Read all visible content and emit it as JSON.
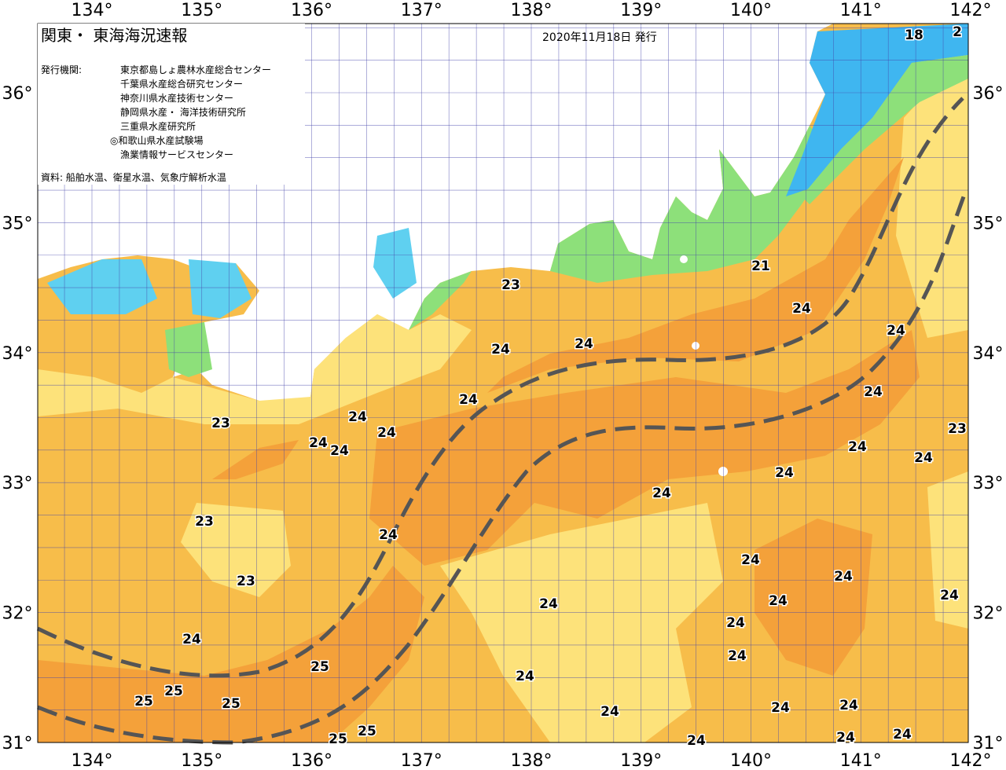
{
  "header": {
    "title": "関東・ 東海海況速報",
    "date": "2020年11月18日 発行",
    "publisher_label": "発行機関:",
    "publishers": [
      "東京都島しょ農林水産総合センター",
      "千葉県水産総合研究センター",
      "神奈川県水産技術センター",
      "静岡県水産・ 海洋技術研究所",
      "三重県水産研究所",
      "◎和歌山県水産試験場",
      "漁業情報サービスセンター"
    ],
    "source": "資料: 船舶水温、衛星水温、気象庁解析水温"
  },
  "axes": {
    "longitude_top": [
      "134°",
      "135°",
      "136°",
      "137°",
      "138°",
      "139°",
      "140°",
      "141°",
      "142°"
    ],
    "longitude_bottom": [
      "134°",
      "135°",
      "136°",
      "137°",
      "138°",
      "139°",
      "140°",
      "141°",
      "142°"
    ],
    "latitude_left": [
      "36°",
      "35°",
      "34°",
      "33°",
      "32°",
      "31°"
    ],
    "latitude_right": [
      "36°",
      "35°",
      "34°",
      "33°",
      "32°",
      "31°"
    ]
  },
  "contour_labels": [
    "18",
    "2",
    "21",
    "23",
    "24",
    "24",
    "24",
    "24",
    "24",
    "24",
    "24",
    "24",
    "23",
    "24",
    "24",
    "23",
    "24",
    "24",
    "24",
    "24",
    "23",
    "24",
    "23",
    "24",
    "24",
    "24",
    "24",
    "24",
    "24",
    "24",
    "24",
    "25",
    "24",
    "25",
    "25",
    "25",
    "24",
    "24",
    "24",
    "24",
    "24",
    "25",
    "25",
    "24"
  ]
}
